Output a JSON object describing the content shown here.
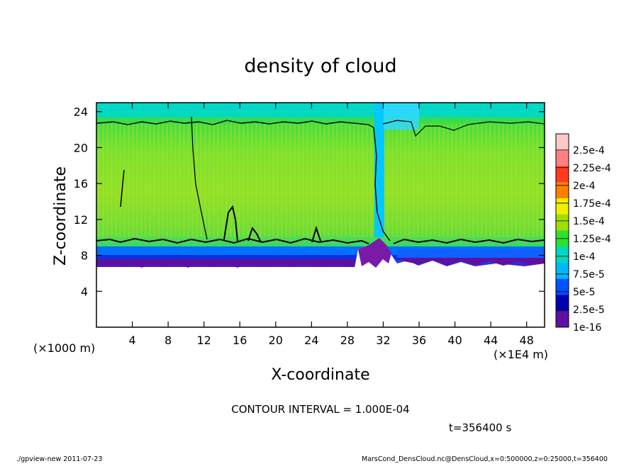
{
  "chart_data": {
    "type": "heatmap",
    "title": "density of cloud",
    "xlabel": "X-coordinate",
    "ylabel": "Z-coordinate",
    "x_unit": "(×1E4 m)",
    "y_unit": "(×1000 m)",
    "xlim": [
      0,
      50
    ],
    "ylim": [
      0,
      25
    ],
    "x_ticks": [
      "4",
      "8",
      "12",
      "16",
      "20",
      "24",
      "28",
      "32",
      "36",
      "40",
      "44",
      "48"
    ],
    "y_ticks": [
      "4",
      "8",
      "12",
      "16",
      "20",
      "24"
    ],
    "colorbar": {
      "labels": [
        "2.5e-4",
        "2.25e-4",
        "2e-4",
        "1.75e-4",
        "1.5e-4",
        "1.25e-4",
        "1e-4",
        "7.5e-5",
        "5e-5",
        "2.5e-5",
        "1e-16"
      ],
      "colors": [
        "#ffc8c8",
        "#ff8080",
        "#ff3c20",
        "#ff8000",
        "#f0f000",
        "#a0e000",
        "#30e030",
        "#00d8c0",
        "#00b8ff",
        "#0050ff",
        "#0000b0",
        "#6010a0"
      ]
    },
    "contour_interval": "CONTOUR INTERVAL = 1.000E-04",
    "time": "t=356400 s",
    "cloud_base_km": 7,
    "cloud_top_km": 22.8,
    "contour_lower_km": 9.6,
    "plume_x": 31
  },
  "footer": {
    "program": "./gpview-new  2011-07-23",
    "source": "MarsCond_DensCloud.nc@DensCloud,x=0:500000,z=0:25000,t=356400"
  },
  "colors": {
    "green_main": "#5ed830",
    "green_light": "#9ae020",
    "cyan_top": "#00d8c0",
    "blue_base": "#0050ff",
    "purple_base": "#6010a0"
  }
}
